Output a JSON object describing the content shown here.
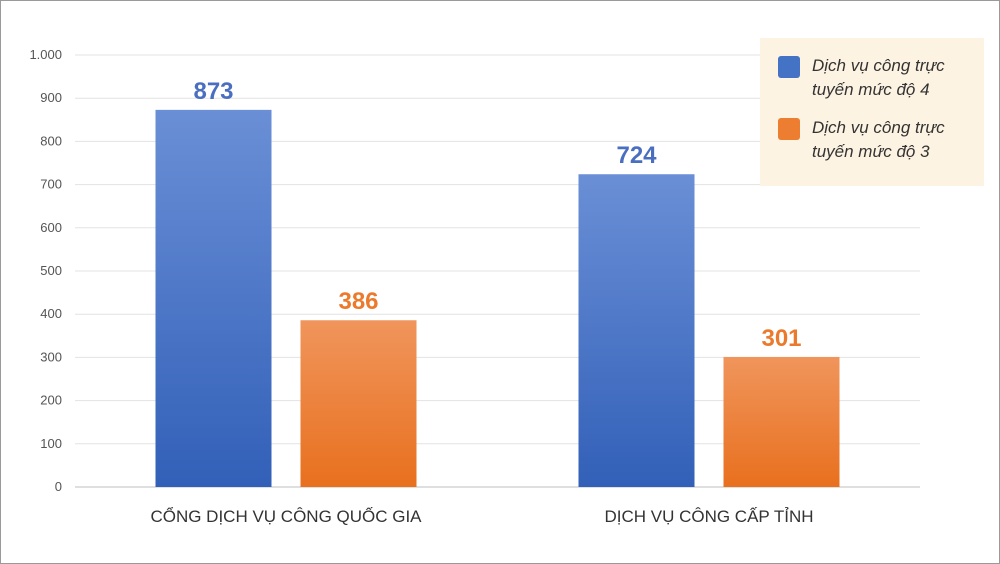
{
  "chart_data": {
    "type": "bar",
    "categories": [
      "CỔNG DỊCH VỤ CÔNG QUỐC GIA",
      "DỊCH VỤ CÔNG CẤP TỈNH"
    ],
    "series": [
      {
        "name": "Dịch vụ công  trực tuyến mức độ 4",
        "values": [
          873,
          724
        ],
        "color": "#4472c4",
        "color_light": "#6a8fd6",
        "color_dark": "#3260b8",
        "label_color": "#4a6fc0"
      },
      {
        "name": "Dịch vụ công  trực tuyến mức độ 3",
        "values": [
          386,
          301
        ],
        "color": "#ed7d31",
        "color_light": "#f0955c",
        "color_dark": "#e8701e",
        "label_color": "#ec7a2c"
      }
    ],
    "ylim": [
      0,
      1000
    ],
    "yticks": [
      0,
      100,
      200,
      300,
      400,
      500,
      600,
      700,
      800,
      900,
      1000
    ],
    "ytick_labels": [
      "0",
      "100",
      "200",
      "300",
      "400",
      "500",
      "600",
      "700",
      "800",
      "900",
      "1.000"
    ],
    "grid": true,
    "legend_position": "top-right",
    "title": "",
    "xlabel": "",
    "ylabel": ""
  }
}
